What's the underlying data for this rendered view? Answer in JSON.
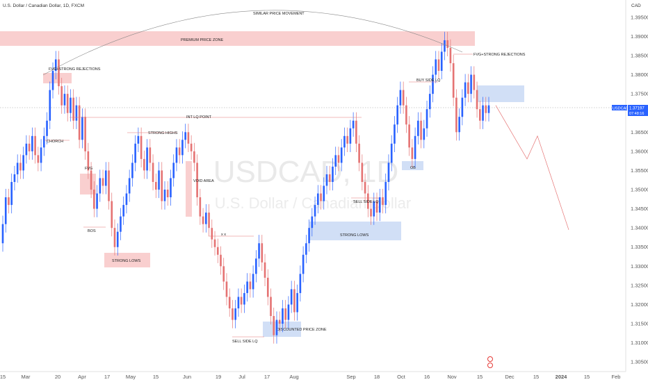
{
  "header": {
    "title": "U.S. Dollar / Canadian Dollar, 1D, FXCM",
    "currency": "CAD"
  },
  "watermark": {
    "symbol": "USDCAD, 1D",
    "name": "U.S. Dollar / Canadian Dollar"
  },
  "price_label": {
    "symbol": "USDCAD",
    "price": "1.37197",
    "countdown": "07:48:16"
  },
  "chart_data": {
    "type": "candlestick",
    "ylim": [
      1.3025,
      1.3995
    ],
    "y_ticks": [
      "1.39500",
      "1.39000",
      "1.38500",
      "1.38000",
      "1.37500",
      "1.37000",
      "1.36500",
      "1.36000",
      "1.35500",
      "1.35000",
      "1.34500",
      "1.34000",
      "1.33500",
      "1.33000",
      "1.32500",
      "1.32000",
      "1.31500",
      "1.31000",
      "1.30500"
    ],
    "x_ticks": [
      "15",
      "Mar",
      "20",
      "Apr",
      "17",
      "May",
      "15",
      "Jun",
      "19",
      "Jul",
      "17",
      "Aug",
      "Sep",
      "18",
      "Oct",
      "16",
      "Nov",
      "15",
      "Dec",
      "15",
      "2024",
      "15",
      "Feb"
    ],
    "last_price": 1.37197,
    "candles": [
      [
        1.336,
        1.341
      ],
      [
        1.341,
        1.348
      ],
      [
        1.348,
        1.346
      ],
      [
        1.346,
        1.352
      ],
      [
        1.352,
        1.354
      ],
      [
        1.354,
        1.357
      ],
      [
        1.357,
        1.355
      ],
      [
        1.355,
        1.359
      ],
      [
        1.359,
        1.362
      ],
      [
        1.362,
        1.36
      ],
      [
        1.36,
        1.364
      ],
      [
        1.364,
        1.359
      ],
      [
        1.359,
        1.357
      ],
      [
        1.357,
        1.361
      ],
      [
        1.361,
        1.364
      ],
      [
        1.364,
        1.368
      ],
      [
        1.368,
        1.376
      ],
      [
        1.376,
        1.381
      ],
      [
        1.381,
        1.384
      ],
      [
        1.384,
        1.377
      ],
      [
        1.377,
        1.372
      ],
      [
        1.372,
        1.375
      ],
      [
        1.375,
        1.37
      ],
      [
        1.37,
        1.374
      ],
      [
        1.374,
        1.368
      ],
      [
        1.368,
        1.372
      ],
      [
        1.372,
        1.363
      ],
      [
        1.363,
        1.369
      ],
      [
        1.369,
        1.36
      ],
      [
        1.36,
        1.355
      ],
      [
        1.355,
        1.35
      ],
      [
        1.35,
        1.345
      ],
      [
        1.345,
        1.349
      ],
      [
        1.349,
        1.353
      ],
      [
        1.353,
        1.351
      ],
      [
        1.351,
        1.355
      ],
      [
        1.355,
        1.347
      ],
      [
        1.347,
        1.34
      ],
      [
        1.34,
        1.335
      ],
      [
        1.335,
        1.339
      ],
      [
        1.339,
        1.343
      ],
      [
        1.343,
        1.346
      ],
      [
        1.346,
        1.349
      ],
      [
        1.349,
        1.353
      ],
      [
        1.353,
        1.357
      ],
      [
        1.357,
        1.362
      ],
      [
        1.362,
        1.364
      ],
      [
        1.364,
        1.358
      ],
      [
        1.358,
        1.355
      ],
      [
        1.355,
        1.361
      ],
      [
        1.361,
        1.357
      ],
      [
        1.357,
        1.352
      ],
      [
        1.352,
        1.35
      ],
      [
        1.35,
        1.355
      ],
      [
        1.355,
        1.347
      ],
      [
        1.347,
        1.35
      ],
      [
        1.35,
        1.348
      ],
      [
        1.348,
        1.353
      ],
      [
        1.353,
        1.357
      ],
      [
        1.357,
        1.361
      ],
      [
        1.361,
        1.359
      ],
      [
        1.359,
        1.363
      ],
      [
        1.363,
        1.365
      ],
      [
        1.365,
        1.362
      ],
      [
        1.362,
        1.36
      ],
      [
        1.36,
        1.357
      ],
      [
        1.357,
        1.348
      ],
      [
        1.348,
        1.343
      ],
      [
        1.343,
        1.341
      ],
      [
        1.341,
        1.344
      ],
      [
        1.344,
        1.34
      ],
      [
        1.34,
        1.337
      ],
      [
        1.337,
        1.335
      ],
      [
        1.335,
        1.333
      ],
      [
        1.333,
        1.33
      ],
      [
        1.33,
        1.326
      ],
      [
        1.326,
        1.322
      ],
      [
        1.322,
        1.319
      ],
      [
        1.319,
        1.316
      ],
      [
        1.316,
        1.319
      ],
      [
        1.319,
        1.322
      ],
      [
        1.322,
        1.32
      ],
      [
        1.32,
        1.323
      ],
      [
        1.323,
        1.326
      ],
      [
        1.326,
        1.324
      ],
      [
        1.324,
        1.328
      ],
      [
        1.328,
        1.332
      ],
      [
        1.332,
        1.336
      ],
      [
        1.336,
        1.331
      ],
      [
        1.331,
        1.327
      ],
      [
        1.327,
        1.322
      ],
      [
        1.322,
        1.317
      ],
      [
        1.317,
        1.312
      ],
      [
        1.312,
        1.316
      ],
      [
        1.316,
        1.315
      ],
      [
        1.315,
        1.319
      ],
      [
        1.319,
        1.316
      ],
      [
        1.316,
        1.32
      ],
      [
        1.32,
        1.324
      ],
      [
        1.324,
        1.318
      ],
      [
        1.318,
        1.323
      ],
      [
        1.323,
        1.328
      ],
      [
        1.328,
        1.333
      ],
      [
        1.333,
        1.336
      ],
      [
        1.336,
        1.34
      ],
      [
        1.34,
        1.343
      ],
      [
        1.343,
        1.346
      ],
      [
        1.346,
        1.349
      ],
      [
        1.349,
        1.347
      ],
      [
        1.347,
        1.351
      ],
      [
        1.351,
        1.354
      ],
      [
        1.354,
        1.352
      ],
      [
        1.352,
        1.356
      ],
      [
        1.356,
        1.359
      ],
      [
        1.359,
        1.357
      ],
      [
        1.357,
        1.361
      ],
      [
        1.361,
        1.364
      ],
      [
        1.364,
        1.362
      ],
      [
        1.362,
        1.366
      ],
      [
        1.366,
        1.368
      ],
      [
        1.368,
        1.362
      ],
      [
        1.362,
        1.357
      ],
      [
        1.357,
        1.352
      ],
      [
        1.352,
        1.349
      ],
      [
        1.349,
        1.345
      ],
      [
        1.345,
        1.343
      ],
      [
        1.343,
        1.347
      ],
      [
        1.347,
        1.344
      ],
      [
        1.344,
        1.348
      ],
      [
        1.348,
        1.346
      ],
      [
        1.346,
        1.352
      ],
      [
        1.352,
        1.357
      ],
      [
        1.357,
        1.362
      ],
      [
        1.362,
        1.367
      ],
      [
        1.367,
        1.372
      ],
      [
        1.372,
        1.376
      ],
      [
        1.376,
        1.372
      ],
      [
        1.372,
        1.367
      ],
      [
        1.367,
        1.361
      ],
      [
        1.361,
        1.358
      ],
      [
        1.358,
        1.364
      ],
      [
        1.364,
        1.368
      ],
      [
        1.368,
        1.363
      ],
      [
        1.363,
        1.366
      ],
      [
        1.366,
        1.371
      ],
      [
        1.371,
        1.375
      ],
      [
        1.375,
        1.38
      ],
      [
        1.38,
        1.384
      ],
      [
        1.384,
        1.381
      ],
      [
        1.381,
        1.386
      ],
      [
        1.386,
        1.389
      ],
      [
        1.389,
        1.387
      ],
      [
        1.387,
        1.383
      ],
      [
        1.383,
        1.374
      ],
      [
        1.374,
        1.365
      ],
      [
        1.365,
        1.369
      ],
      [
        1.369,
        1.374
      ],
      [
        1.374,
        1.378
      ],
      [
        1.378,
        1.375
      ],
      [
        1.375,
        1.38
      ],
      [
        1.38,
        1.376
      ],
      [
        1.376,
        1.371
      ],
      [
        1.371,
        1.368
      ],
      [
        1.368,
        1.372
      ],
      [
        1.372,
        1.37
      ],
      [
        1.37,
        1.372
      ]
    ],
    "projection": [
      [
        1.372,
        0
      ],
      [
        1.358,
        6
      ],
      [
        1.364,
        8
      ],
      [
        1.3395,
        14
      ]
    ],
    "zones": [
      {
        "label": "PREMIUM PRICE ZONE",
        "color": "red"
      },
      {
        "label": "STRONG LOWS",
        "color": "red"
      },
      {
        "label": "STRONG LOWS",
        "color": "blue"
      },
      {
        "label": "DISCOUNTED PRICE ZONE",
        "color": "blue"
      },
      {
        "label": "OB",
        "color": "blue"
      },
      {
        "label": "FVG",
        "color": "red"
      },
      {
        "label": "VOID AREA",
        "color": "red"
      }
    ],
    "annotations": [
      "SIMILAR PRICE MOVEMENT",
      "FVG+STRONG REJECTIONS",
      "CHORCH",
      "FVG",
      "BOS",
      "STRONG HIGHS",
      "INT LQ POINT",
      "x  x",
      "SELL SIDE LQ",
      "BUY SIDE LQ",
      "SELL SIDE LQ",
      "FVG+STRONG REJECTIONS"
    ],
    "colors": {
      "up": "#2962ff",
      "down": "#e57373",
      "zone_red": "#f8c7c7",
      "zone_blue": "#c9d9f5"
    }
  }
}
